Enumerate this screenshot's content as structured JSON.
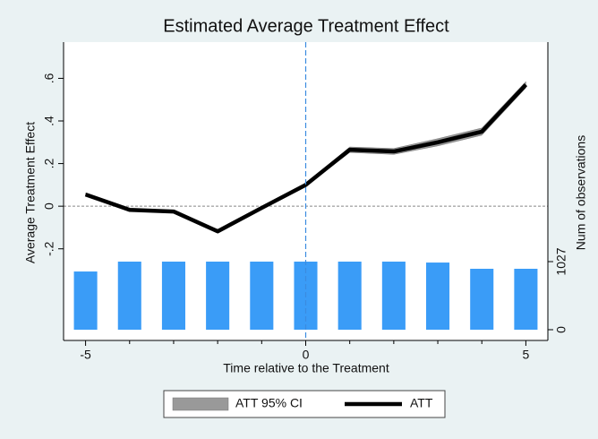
{
  "chart_data": {
    "type": "line",
    "title": "Estimated Average Treatment Effect",
    "x_label": "Time relative to the Treatment",
    "y_label": "Average Treatment Effect",
    "y2_label": "Num of observations",
    "x": [
      -5,
      -4,
      -3,
      -2,
      -1,
      0,
      1,
      2,
      3,
      4,
      5
    ],
    "xlim": [
      -5.5,
      5.5
    ],
    "xticks": [
      -5,
      0,
      5
    ],
    "xminorticks": [
      -4,
      -3,
      -2,
      -1,
      1,
      2,
      3,
      4
    ],
    "ylim": [
      -0.63,
      0.77
    ],
    "yticks": [
      {
        "value": -0.2,
        "label": "-.2"
      },
      0,
      {
        "value": 0.2,
        "label": ".2"
      },
      {
        "value": 0.4,
        "label": ".4"
      },
      {
        "value": 0.6,
        "label": ".6"
      }
    ],
    "y2lim": [
      -162,
      4338
    ],
    "y2ticks": [
      0,
      1027
    ],
    "reference_lines": {
      "x": 0,
      "y": 0
    },
    "series": [
      {
        "name": "ATT 95% CI",
        "type": "band",
        "color": "#999999",
        "lower": [
          0.048,
          -0.022,
          -0.03,
          -0.123,
          -0.013,
          0.093,
          0.252,
          0.243,
          0.283,
          0.333,
          0.555
        ],
        "upper": [
          0.062,
          -0.012,
          -0.02,
          -0.113,
          -0.003,
          0.107,
          0.278,
          0.271,
          0.317,
          0.367,
          0.585
        ]
      },
      {
        "name": "ATT",
        "type": "line",
        "color": "#000000",
        "values": [
          0.055,
          -0.017,
          -0.025,
          -0.118,
          -0.008,
          0.1,
          0.265,
          0.257,
          0.3,
          0.35,
          0.57
        ]
      },
      {
        "type": "bar",
        "axis": "y2",
        "color": "#3a9cf7",
        "values": [
          878,
          1027,
          1027,
          1027,
          1027,
          1027,
          1027,
          1027,
          1013,
          919,
          919
        ]
      }
    ]
  }
}
